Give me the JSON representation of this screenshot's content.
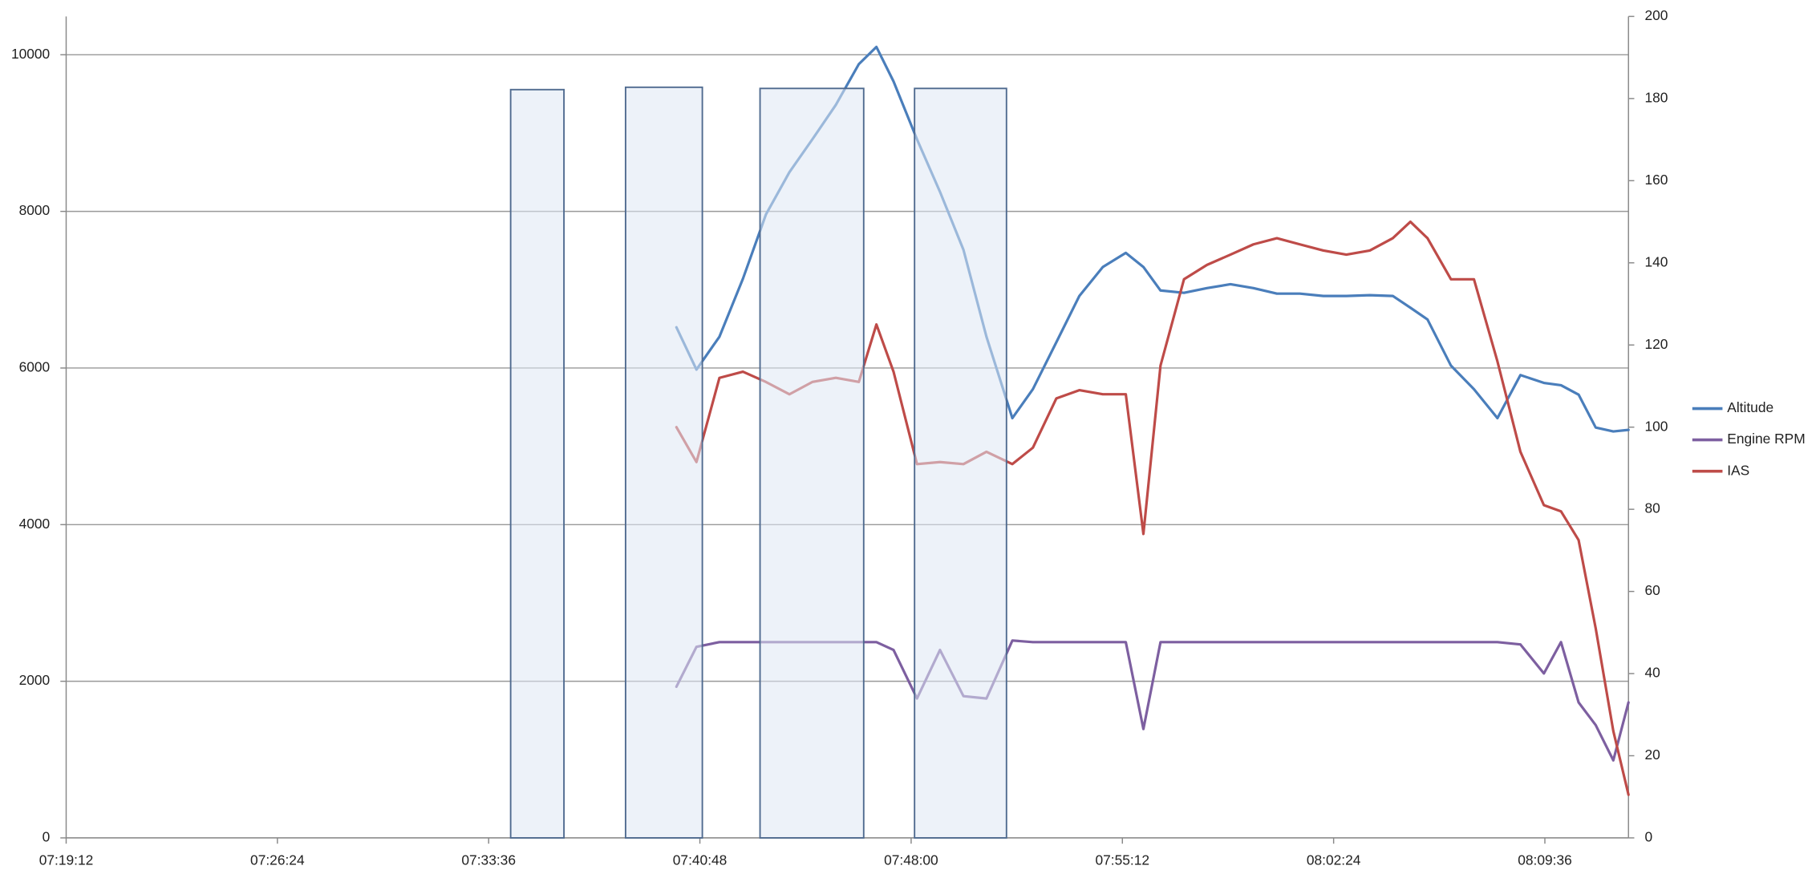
{
  "chart_data": {
    "type": "line",
    "x": [
      27600,
      27641,
      27688,
      27736,
      27783,
      27831,
      27878,
      27926,
      27973,
      28009,
      28044,
      28092,
      28139,
      28187,
      28234,
      28287,
      28329,
      28377,
      28424,
      28472,
      28519,
      28555,
      28590,
      28638,
      28685,
      28733,
      28780,
      28828,
      28875,
      28923,
      28970,
      29018,
      29065,
      29101,
      29136,
      29184,
      29231,
      29279,
      29326,
      29374,
      29409,
      29445,
      29480,
      29516,
      29547
    ],
    "series": [
      {
        "name": "Altitude",
        "color": "#4a7ebb",
        "values": [
          6520,
          5980,
          6400,
          7140,
          7960,
          8500,
          8920,
          9360,
          9880,
          10100,
          9660,
          8920,
          8250,
          7510,
          6400,
          5360,
          5730,
          6330,
          6920,
          7290,
          7470,
          7290,
          6990,
          6960,
          7020,
          7070,
          7020,
          6950,
          6950,
          6920,
          6920,
          6930,
          6920,
          6770,
          6620,
          6030,
          5730,
          5360,
          5910,
          5810,
          5780,
          5660,
          5240,
          5190,
          5210
        ]
      },
      {
        "name": "Engine RPM",
        "color": "#7d5fa0",
        "values": [
          1930,
          2440,
          2500,
          2500,
          2500,
          2500,
          2500,
          2500,
          2500,
          2500,
          2400,
          1780,
          2400,
          1810,
          1780,
          2520,
          2500,
          2500,
          2500,
          2500,
          2500,
          1390,
          2500,
          2500,
          2500,
          2500,
          2500,
          2500,
          2500,
          2500,
          2500,
          2500,
          2500,
          2500,
          2500,
          2500,
          2500,
          2500,
          2470,
          2100,
          2500,
          1730,
          1440,
          990,
          1730
        ]
      },
      {
        "name": "IAS",
        "color": "#be4b48",
        "axis": "y2",
        "values": [
          100,
          91.5,
          112,
          113.5,
          111,
          108,
          111,
          112,
          111,
          125,
          113.5,
          91,
          91.5,
          91,
          94,
          91,
          95,
          107,
          109,
          108,
          108,
          74,
          115,
          136,
          139.5,
          142,
          144.5,
          146,
          144.5,
          143,
          142,
          143,
          146,
          150,
          146,
          136,
          136,
          116,
          94,
          81,
          79.5,
          72.5,
          51,
          26,
          10.5
        ]
      }
    ],
    "bands": [
      {
        "start": 27261,
        "end": 27370,
        "top": 9555
      },
      {
        "start": 27496,
        "end": 27653,
        "top": 9585
      },
      {
        "start": 27771,
        "end": 27983,
        "top": 9570
      },
      {
        "start": 28087,
        "end": 28275,
        "top": 9570
      }
    ],
    "band_color": "#dfe7f4",
    "xlim": [
      26352,
      29547
    ],
    "xticks": [
      {
        "value": 26352,
        "label": "07:19:12"
      },
      {
        "value": 26784,
        "label": "07:26:24"
      },
      {
        "value": 27216,
        "label": "07:33:36"
      },
      {
        "value": 27648,
        "label": "07:40:48"
      },
      {
        "value": 28080,
        "label": "07:48:00"
      },
      {
        "value": 28512,
        "label": "07:55:12"
      },
      {
        "value": 28944,
        "label": "08:02:24"
      },
      {
        "value": 29376,
        "label": "08:09:36"
      }
    ],
    "ylim": [
      0,
      10490
    ],
    "yticks": [
      0,
      2000,
      4000,
      6000,
      8000,
      10000
    ],
    "y2lim": [
      0,
      200
    ],
    "y2ticks": [
      0,
      20,
      40,
      60,
      80,
      100,
      120,
      140,
      160,
      180,
      200
    ],
    "grid": true,
    "legend": "right"
  }
}
